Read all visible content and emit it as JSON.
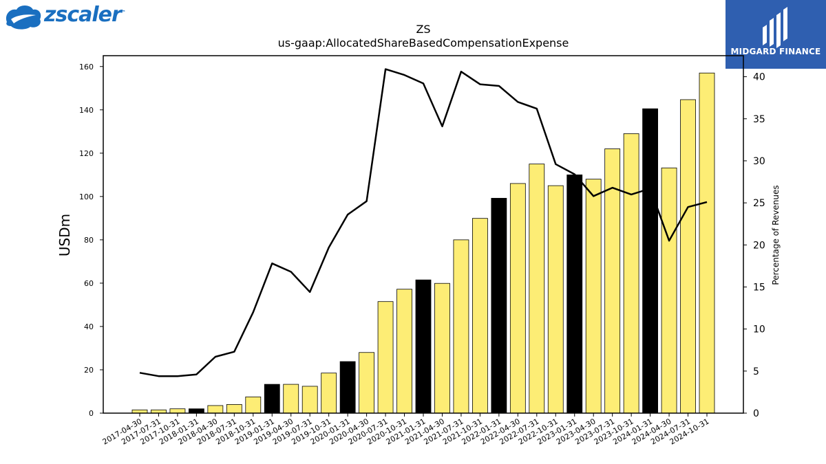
{
  "logos": {
    "left_brand": "zscaler",
    "left_trademark": "™",
    "left_color": "#1a6fc0",
    "right_brand": "MIDGARD FINANCE",
    "right_bg": "#2f5fb0"
  },
  "chart_data": {
    "type": "bar",
    "title": "ZS",
    "subtitle": "us-gaap:AllocatedShareBasedCompensationExpense",
    "ylabel": "USDm",
    "y2label": "Percentage of Revenues",
    "ylim": [
      0,
      165
    ],
    "y2lim": [
      0,
      42.5
    ],
    "yticks": [
      0,
      20,
      40,
      60,
      80,
      100,
      120,
      140,
      160
    ],
    "y2ticks": [
      0,
      5,
      10,
      15,
      20,
      25,
      30,
      35,
      40
    ],
    "categories": [
      "2017-04-30",
      "2017-07-31",
      "2017-10-31",
      "2018-01-31",
      "2018-04-30",
      "2018-07-31",
      "2018-10-31",
      "2019-01-31",
      "2019-04-30",
      "2019-07-31",
      "2019-10-31",
      "2020-01-31",
      "2020-04-30",
      "2020-07-31",
      "2020-10-31",
      "2021-01-31",
      "2021-04-30",
      "2021-07-31",
      "2021-10-31",
      "2022-01-31",
      "2022-04-30",
      "2022-07-31",
      "2022-10-31",
      "2023-01-31",
      "2023-04-30",
      "2023-07-31",
      "2023-10-31",
      "2024-01-31",
      "2024-04-30",
      "2024-07-31",
      "2024-10-31"
    ],
    "values": [
      1.5,
      1.5,
      2.0,
      2.0,
      3.5,
      4.0,
      7.5,
      13.3,
      13.3,
      12.4,
      18.5,
      23.8,
      28.0,
      51.5,
      57.2,
      61.5,
      59.9,
      80.0,
      89.9,
      99.2,
      106.0,
      115.0,
      105.0,
      110.0,
      108.0,
      122.0,
      129.0,
      140.5,
      113.2,
      144.7,
      157.0
    ],
    "highlight": [
      false,
      false,
      false,
      true,
      false,
      false,
      false,
      true,
      false,
      false,
      false,
      true,
      false,
      false,
      false,
      true,
      false,
      false,
      false,
      true,
      false,
      false,
      false,
      true,
      false,
      false,
      false,
      true,
      false,
      false,
      false
    ],
    "line_series": {
      "values": [
        4.8,
        4.4,
        4.4,
        4.6,
        6.7,
        7.3,
        12.0,
        17.8,
        16.8,
        14.4,
        19.7,
        23.6,
        25.2,
        40.9,
        40.2,
        39.2,
        34.1,
        40.6,
        39.1,
        38.9,
        37.0,
        36.2,
        29.6,
        28.4,
        25.8,
        26.8,
        26.0,
        26.7,
        20.5,
        24.5,
        25.1
      ]
    },
    "colors": {
      "bar": "#fded75",
      "bar_highlight": "#000000",
      "line": "#000000"
    },
    "grid": false
  }
}
